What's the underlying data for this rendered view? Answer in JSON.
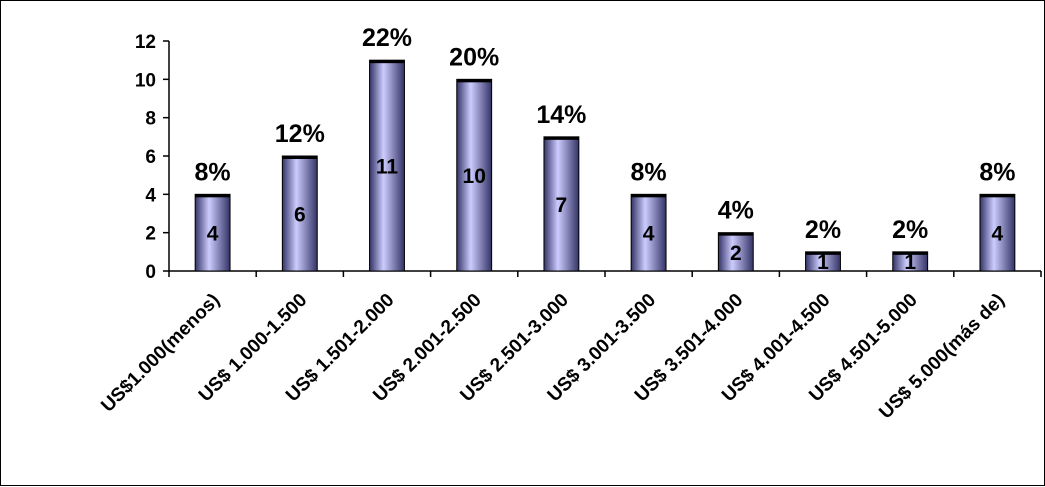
{
  "chart_data": {
    "type": "bar",
    "categories": [
      "US$1.000(menos)",
      "US$ 1.000-1.500",
      "US$ 1.501-2.000",
      "US$ 2.001-2.500",
      "US$ 2.501-3.000",
      "US$ 3.001-3.500",
      "US$ 3.501-4.000",
      "US$ 4.001-4.500",
      "US$ 4.501-5.000",
      "US$ 5.000(más de)"
    ],
    "values": [
      4,
      6,
      11,
      10,
      7,
      4,
      2,
      1,
      1,
      4
    ],
    "value_labels": [
      "4",
      "6",
      "11",
      "10",
      "7",
      "4",
      "2",
      "1",
      "1",
      "4"
    ],
    "percent_labels": [
      "8%",
      "12%",
      "22%",
      "20%",
      "14%",
      "8%",
      "4%",
      "2%",
      "2%",
      "8%"
    ],
    "title": "",
    "xlabel": "",
    "ylabel": "",
    "ylim": [
      0,
      12
    ],
    "yticks": [
      0,
      2,
      4,
      6,
      8,
      10,
      12
    ],
    "grid": false,
    "legend": "none",
    "colors": {
      "bar_light": "#ccccff",
      "bar_dark": "#333366",
      "bar_top": "#000000",
      "axis": "#000000"
    }
  }
}
